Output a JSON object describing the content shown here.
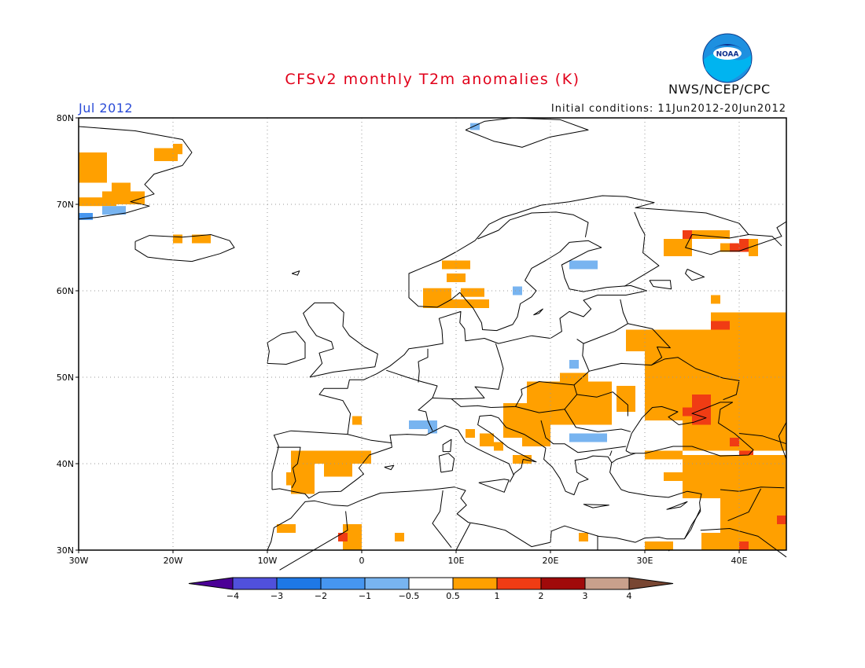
{
  "header": {
    "title": "CFSv2 monthly T2m anomalies (K)",
    "month_label": "Jul 2012",
    "initial_conditions": "Initial conditions: 11Jun2012-20Jun2012",
    "agency": "NWS/NCEP/CPC",
    "logo_text": "NOAA"
  },
  "map": {
    "lon_range": [
      -30,
      45
    ],
    "lat_range": [
      30,
      80
    ],
    "lat_ticks": [
      {
        "value": 80,
        "label": "80N"
      },
      {
        "value": 70,
        "label": "70N"
      },
      {
        "value": 60,
        "label": "60N"
      },
      {
        "value": 50,
        "label": "50N"
      },
      {
        "value": 40,
        "label": "40N"
      },
      {
        "value": 30,
        "label": "30N"
      }
    ],
    "lon_ticks": [
      {
        "value": -30,
        "label": "30W"
      },
      {
        "value": -20,
        "label": "20W"
      },
      {
        "value": -10,
        "label": "10W"
      },
      {
        "value": 0,
        "label": "0"
      },
      {
        "value": 10,
        "label": "10E"
      },
      {
        "value": 20,
        "label": "20E"
      },
      {
        "value": 30,
        "label": "30E"
      },
      {
        "value": 40,
        "label": "40E"
      }
    ],
    "grid": "dotted",
    "colors": {
      "orange": "#ffa000",
      "red": "#f03c14",
      "lightblue": "#78b4f0",
      "midblue": "#4696f0"
    },
    "anomaly_regions": [
      {
        "level": "orange",
        "lon": [
          -30,
          -27
        ],
        "lat": [
          72.5,
          76
        ]
      },
      {
        "level": "orange",
        "lon": [
          -27.5,
          -23
        ],
        "lat": [
          70,
          71.5
        ]
      },
      {
        "level": "orange",
        "lon": [
          -30,
          -26
        ],
        "lat": [
          69.8,
          70.8
        ]
      },
      {
        "level": "orange",
        "lon": [
          -22,
          -19.5
        ],
        "lat": [
          75,
          76.5
        ]
      },
      {
        "level": "orange",
        "lon": [
          -20,
          -19
        ],
        "lat": [
          75.8,
          77
        ]
      },
      {
        "level": "orange",
        "lon": [
          -26.5,
          -24.5
        ],
        "lat": [
          71.5,
          72.5
        ]
      },
      {
        "level": "midblue",
        "lon": [
          -30,
          -28.5
        ],
        "lat": [
          68.2,
          69
        ]
      },
      {
        "level": "lightblue",
        "lon": [
          -27.5,
          -25
        ],
        "lat": [
          68.8,
          69.8
        ]
      },
      {
        "level": "orange",
        "lon": [
          -20,
          -19
        ],
        "lat": [
          65.5,
          66.5
        ]
      },
      {
        "level": "orange",
        "lon": [
          -18,
          -16
        ],
        "lat": [
          65.5,
          66.5
        ]
      },
      {
        "level": "lightblue",
        "lon": [
          11.5,
          12.5
        ],
        "lat": [
          78.6,
          79.4
        ]
      },
      {
        "level": "orange",
        "lon": [
          6.5,
          9.5
        ],
        "lat": [
          58,
          60.3
        ]
      },
      {
        "level": "orange",
        "lon": [
          9,
          11
        ],
        "lat": [
          58,
          59
        ]
      },
      {
        "level": "orange",
        "lon": [
          9,
          11
        ],
        "lat": [
          61,
          62
        ]
      },
      {
        "level": "orange",
        "lon": [
          10.5,
          13
        ],
        "lat": [
          59.3,
          60.3
        ]
      },
      {
        "level": "orange",
        "lon": [
          8.5,
          11.5
        ],
        "lat": [
          62.5,
          63.5
        ]
      },
      {
        "level": "orange",
        "lon": [
          11,
          13.5
        ],
        "lat": [
          58,
          59
        ]
      },
      {
        "level": "lightblue",
        "lon": [
          16,
          17
        ],
        "lat": [
          59.5,
          60.5
        ]
      },
      {
        "level": "lightblue",
        "lon": [
          22,
          25
        ],
        "lat": [
          62.5,
          63.5
        ]
      },
      {
        "level": "orange",
        "lon": [
          32,
          35
        ],
        "lat": [
          64,
          66
        ]
      },
      {
        "level": "orange",
        "lon": [
          34,
          39
        ],
        "lat": [
          66,
          67
        ]
      },
      {
        "level": "orange",
        "lon": [
          38,
          41
        ],
        "lat": [
          64.5,
          65.5
        ]
      },
      {
        "level": "orange",
        "lon": [
          41,
          42
        ],
        "lat": [
          64,
          66
        ]
      },
      {
        "level": "red",
        "lon": [
          34,
          35
        ],
        "lat": [
          66,
          67
        ]
      },
      {
        "level": "red",
        "lon": [
          39,
          40
        ],
        "lat": [
          64.5,
          65.5
        ]
      },
      {
        "level": "red",
        "lon": [
          40,
          41
        ],
        "lat": [
          64.5,
          66
        ]
      },
      {
        "level": "orange",
        "lon": [
          37,
          38
        ],
        "lat": [
          58.5,
          59.5
        ]
      },
      {
        "level": "orange",
        "lon": [
          37,
          45
        ],
        "lat": [
          53,
          57.5
        ]
      },
      {
        "level": "orange",
        "lon": [
          30,
          45
        ],
        "lat": [
          45,
          55.5
        ]
      },
      {
        "level": "orange",
        "lon": [
          28,
          30
        ],
        "lat": [
          53,
          55.5
        ]
      },
      {
        "level": "orange",
        "lon": [
          34,
          45
        ],
        "lat": [
          41.5,
          45
        ]
      },
      {
        "level": "orange",
        "lon": [
          17.5,
          26.5
        ],
        "lat": [
          44.5,
          49.5
        ]
      },
      {
        "level": "orange",
        "lon": [
          15,
          17.5
        ],
        "lat": [
          43,
          47
        ]
      },
      {
        "level": "orange",
        "lon": [
          21,
          24
        ],
        "lat": [
          49.5,
          50.5
        ]
      },
      {
        "level": "orange",
        "lon": [
          27,
          29
        ],
        "lat": [
          46,
          49
        ]
      },
      {
        "level": "orange",
        "lon": [
          17,
          20
        ],
        "lat": [
          42,
          45
        ]
      },
      {
        "level": "orange",
        "lon": [
          16,
          18
        ],
        "lat": [
          40,
          41
        ]
      },
      {
        "level": "orange",
        "lon": [
          14,
          15
        ],
        "lat": [
          41.5,
          42.5
        ]
      },
      {
        "level": "orange",
        "lon": [
          12.5,
          14
        ],
        "lat": [
          42,
          43.5
        ]
      },
      {
        "level": "orange",
        "lon": [
          11,
          12
        ],
        "lat": [
          43,
          44
        ]
      },
      {
        "level": "orange",
        "lon": [
          -1,
          0
        ],
        "lat": [
          44.5,
          45.5
        ]
      },
      {
        "level": "red",
        "lon": [
          35,
          37
        ],
        "lat": [
          44.5,
          48
        ]
      },
      {
        "level": "red",
        "lon": [
          34,
          35
        ],
        "lat": [
          45.5,
          46.5
        ]
      },
      {
        "level": "red",
        "lon": [
          40,
          41.5
        ],
        "lat": [
          40.5,
          41.5
        ]
      },
      {
        "level": "red",
        "lon": [
          37,
          39
        ],
        "lat": [
          55.5,
          56.5
        ]
      },
      {
        "level": "red",
        "lon": [
          39,
          40
        ],
        "lat": [
          42,
          43
        ]
      },
      {
        "level": "lightblue",
        "lon": [
          22,
          26
        ],
        "lat": [
          42.5,
          43.5
        ]
      },
      {
        "level": "lightblue",
        "lon": [
          5,
          8
        ],
        "lat": [
          44,
          45
        ]
      },
      {
        "level": "lightblue",
        "lon": [
          7,
          8
        ],
        "lat": [
          43.5,
          44
        ]
      },
      {
        "level": "lightblue",
        "lon": [
          22,
          23
        ],
        "lat": [
          51,
          52
        ]
      },
      {
        "level": "orange",
        "lon": [
          -7.5,
          -5
        ],
        "lat": [
          36.5,
          41.5
        ]
      },
      {
        "level": "orange",
        "lon": [
          -5,
          1
        ],
        "lat": [
          40,
          41.5
        ]
      },
      {
        "level": "orange",
        "lon": [
          -4,
          -1
        ],
        "lat": [
          38.5,
          40
        ]
      },
      {
        "level": "orange",
        "lon": [
          -8,
          -7
        ],
        "lat": [
          37.5,
          39
        ]
      },
      {
        "level": "orange",
        "lon": [
          34,
          45
        ],
        "lat": [
          36,
          41
        ]
      },
      {
        "level": "orange",
        "lon": [
          30,
          34
        ],
        "lat": [
          40.5,
          41.5
        ]
      },
      {
        "level": "orange",
        "lon": [
          32,
          34
        ],
        "lat": [
          38,
          39
        ]
      },
      {
        "level": "orange",
        "lon": [
          38,
          45
        ],
        "lat": [
          30,
          36
        ]
      },
      {
        "level": "orange",
        "lon": [
          36,
          38
        ],
        "lat": [
          30,
          32
        ]
      },
      {
        "level": "orange",
        "lon": [
          30,
          33
        ],
        "lat": [
          30,
          31
        ]
      },
      {
        "level": "red",
        "lon": [
          44,
          45
        ],
        "lat": [
          33,
          34
        ]
      },
      {
        "level": "red",
        "lon": [
          40,
          41
        ],
        "lat": [
          30,
          31
        ]
      },
      {
        "level": "orange",
        "lon": [
          -9,
          -7
        ],
        "lat": [
          32,
          33
        ]
      },
      {
        "level": "orange",
        "lon": [
          -2,
          0
        ],
        "lat": [
          30,
          33
        ]
      },
      {
        "level": "red",
        "lon": [
          -2.5,
          -1.5
        ],
        "lat": [
          31,
          32
        ]
      },
      {
        "level": "orange",
        "lon": [
          3.5,
          4.5
        ],
        "lat": [
          31,
          32
        ]
      },
      {
        "level": "orange",
        "lon": [
          23,
          24
        ],
        "lat": [
          31,
          32
        ]
      }
    ]
  },
  "legend": {
    "colors": [
      "#4b0096",
      "#5050dc",
      "#1e78e6",
      "#4696f0",
      "#78b4f0",
      "#ffffff",
      "#ffa000",
      "#f03c14",
      "#a00a0a",
      "#c8a08c",
      "#784632"
    ],
    "labels": [
      "−4",
      "−3",
      "−2",
      "−1",
      "−0.5",
      "0.5",
      "1",
      "2",
      "3",
      "4"
    ]
  }
}
